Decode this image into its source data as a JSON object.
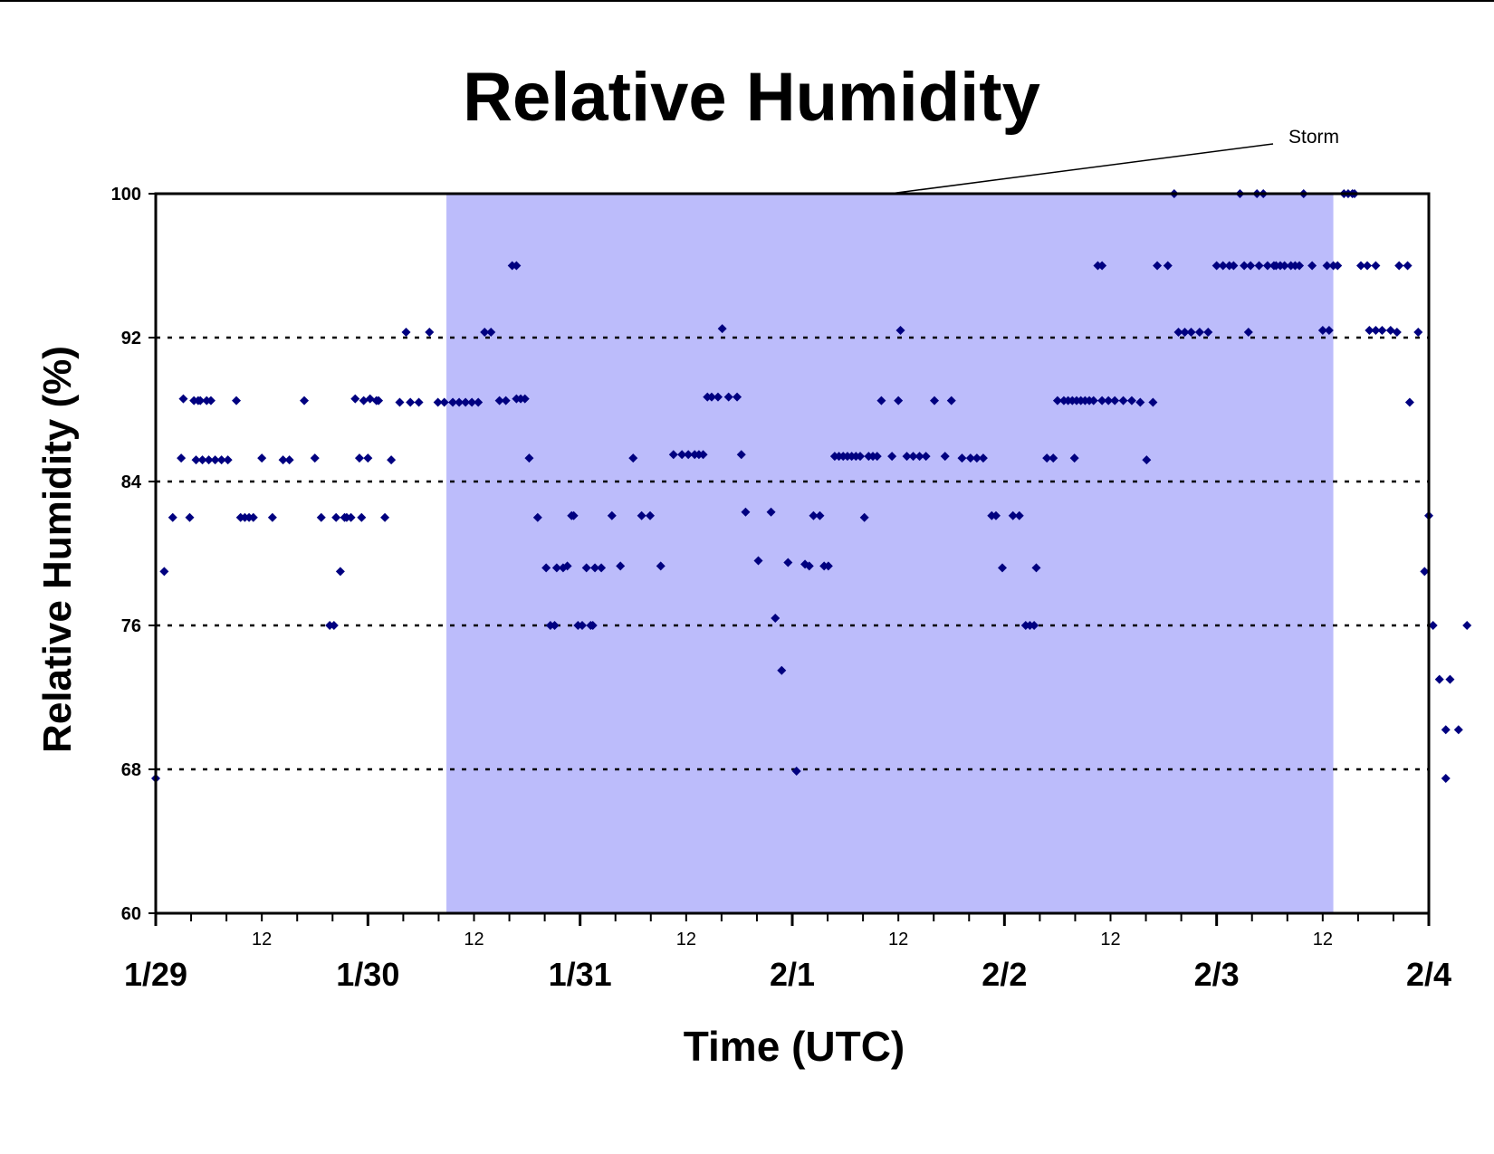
{
  "chart_data": {
    "type": "scatter",
    "title": "Relative Humidity",
    "xlabel": "Time (UTC)",
    "ylabel": "Relative Humidity (%)",
    "x_unit": "days",
    "xlim": [
      "1/29",
      "2/4"
    ],
    "ylim": [
      60,
      100
    ],
    "yticks": [
      60,
      68,
      76,
      84,
      92,
      100
    ],
    "grid": "horizontal dotted at 68, 76, 84, 92",
    "day_labels": [
      "1/29",
      "1/30",
      "1/31",
      "2/1",
      "2/2",
      "2/3",
      "2/4"
    ],
    "hour_label": "12",
    "marker_color": "#000080",
    "storm_fill": "#bcbcfb",
    "storm_annotation": {
      "text": "Storm",
      "start": 1.37,
      "end": 5.55
    },
    "series": [
      {
        "points": [
          [
            0.0,
            67.5
          ],
          [
            0.04,
            79
          ],
          [
            0.08,
            82
          ],
          [
            0.12,
            85.3
          ],
          [
            0.13,
            88.6
          ],
          [
            0.16,
            82
          ],
          [
            0.18,
            88.5
          ],
          [
            0.19,
            85.2
          ],
          [
            0.2,
            88.5
          ],
          [
            0.21,
            88.5
          ],
          [
            0.22,
            85.2
          ],
          [
            0.24,
            88.5
          ],
          [
            0.25,
            85.2
          ],
          [
            0.26,
            88.5
          ],
          [
            0.28,
            85.2
          ],
          [
            0.31,
            85.2
          ],
          [
            0.34,
            85.2
          ],
          [
            0.38,
            88.5
          ],
          [
            0.4,
            82
          ],
          [
            0.42,
            82
          ],
          [
            0.44,
            82
          ],
          [
            0.46,
            82
          ],
          [
            0.5,
            85.3
          ],
          [
            0.55,
            82
          ],
          [
            0.6,
            85.2
          ],
          [
            0.63,
            85.2
          ],
          [
            0.7,
            88.5
          ],
          [
            0.75,
            85.3
          ],
          [
            0.78,
            82
          ],
          [
            0.82,
            76
          ],
          [
            0.84,
            76
          ],
          [
            0.85,
            82
          ],
          [
            0.87,
            79
          ],
          [
            0.89,
            82
          ],
          [
            0.9,
            82
          ],
          [
            0.92,
            82
          ],
          [
            0.94,
            88.6
          ],
          [
            0.96,
            85.3
          ],
          [
            0.97,
            82
          ],
          [
            0.98,
            88.5
          ],
          [
            1.0,
            85.3
          ],
          [
            1.01,
            88.6
          ],
          [
            1.04,
            88.5
          ],
          [
            1.05,
            88.5
          ],
          [
            1.08,
            82
          ],
          [
            1.11,
            85.2
          ],
          [
            1.15,
            88.4
          ],
          [
            1.18,
            92.3
          ],
          [
            1.2,
            88.4
          ],
          [
            1.24,
            88.4
          ],
          [
            1.29,
            92.3
          ],
          [
            1.33,
            88.4
          ],
          [
            1.36,
            88.4
          ],
          [
            1.4,
            88.4
          ],
          [
            1.43,
            88.4
          ],
          [
            1.46,
            88.4
          ],
          [
            1.49,
            88.4
          ],
          [
            1.52,
            88.4
          ],
          [
            1.55,
            92.3
          ],
          [
            1.58,
            92.3
          ],
          [
            1.62,
            88.5
          ],
          [
            1.65,
            88.5
          ],
          [
            1.68,
            96
          ],
          [
            1.7,
            96
          ],
          [
            1.7,
            88.6
          ],
          [
            1.72,
            88.6
          ],
          [
            1.74,
            88.6
          ],
          [
            1.76,
            85.3
          ],
          [
            1.8,
            82
          ],
          [
            1.84,
            79.2
          ],
          [
            1.86,
            76
          ],
          [
            1.88,
            76
          ],
          [
            1.89,
            79.2
          ],
          [
            1.92,
            79.2
          ],
          [
            1.94,
            79.3
          ],
          [
            1.96,
            82.1
          ],
          [
            1.97,
            82.1
          ],
          [
            1.99,
            76
          ],
          [
            2.01,
            76
          ],
          [
            2.03,
            79.2
          ],
          [
            2.05,
            76
          ],
          [
            2.06,
            76
          ],
          [
            2.07,
            79.2
          ],
          [
            2.1,
            79.2
          ],
          [
            2.15,
            82.1
          ],
          [
            2.19,
            79.3
          ],
          [
            2.25,
            85.3
          ],
          [
            2.29,
            82.1
          ],
          [
            2.33,
            82.1
          ],
          [
            2.38,
            79.3
          ],
          [
            2.44,
            85.5
          ],
          [
            2.48,
            85.5
          ],
          [
            2.51,
            85.5
          ],
          [
            2.54,
            85.5
          ],
          [
            2.56,
            85.5
          ],
          [
            2.58,
            85.5
          ],
          [
            2.6,
            88.7
          ],
          [
            2.62,
            88.7
          ],
          [
            2.65,
            88.7
          ],
          [
            2.67,
            92.5
          ],
          [
            2.7,
            88.7
          ],
          [
            2.74,
            88.7
          ],
          [
            2.76,
            85.5
          ],
          [
            2.78,
            82.3
          ],
          [
            2.84,
            79.6
          ],
          [
            2.9,
            82.3
          ],
          [
            2.92,
            76.4
          ],
          [
            2.95,
            73.5
          ],
          [
            2.98,
            79.5
          ],
          [
            3.02,
            67.9
          ],
          [
            3.06,
            79.4
          ],
          [
            3.08,
            79.3
          ],
          [
            3.1,
            82.1
          ],
          [
            3.13,
            82.1
          ],
          [
            3.15,
            79.3
          ],
          [
            3.17,
            79.3
          ],
          [
            3.2,
            85.4
          ],
          [
            3.22,
            85.4
          ],
          [
            3.24,
            85.4
          ],
          [
            3.26,
            85.4
          ],
          [
            3.28,
            85.4
          ],
          [
            3.3,
            85.4
          ],
          [
            3.32,
            85.4
          ],
          [
            3.34,
            82
          ],
          [
            3.36,
            85.4
          ],
          [
            3.38,
            85.4
          ],
          [
            3.4,
            85.4
          ],
          [
            3.42,
            88.5
          ],
          [
            3.47,
            85.4
          ],
          [
            3.5,
            88.5
          ],
          [
            3.51,
            92.4
          ],
          [
            3.54,
            85.4
          ],
          [
            3.57,
            85.4
          ],
          [
            3.6,
            85.4
          ],
          [
            3.63,
            85.4
          ],
          [
            3.67,
            88.5
          ],
          [
            3.72,
            85.4
          ],
          [
            3.75,
            88.5
          ],
          [
            3.8,
            85.3
          ],
          [
            3.84,
            85.3
          ],
          [
            3.87,
            85.3
          ],
          [
            3.9,
            85.3
          ],
          [
            3.94,
            82.1
          ],
          [
            3.96,
            82.1
          ],
          [
            3.99,
            79.2
          ],
          [
            4.04,
            82.1
          ],
          [
            4.07,
            82.1
          ],
          [
            4.1,
            76
          ],
          [
            4.12,
            76
          ],
          [
            4.14,
            76
          ],
          [
            4.15,
            79.2
          ],
          [
            4.2,
            85.3
          ],
          [
            4.23,
            85.3
          ],
          [
            4.25,
            88.5
          ],
          [
            4.28,
            88.5
          ],
          [
            4.3,
            88.5
          ],
          [
            4.32,
            88.5
          ],
          [
            4.33,
            85.3
          ],
          [
            4.34,
            88.5
          ],
          [
            4.36,
            88.5
          ],
          [
            4.38,
            88.5
          ],
          [
            4.4,
            88.5
          ],
          [
            4.42,
            88.5
          ],
          [
            4.44,
            96
          ],
          [
            4.46,
            96
          ],
          [
            4.46,
            88.5
          ],
          [
            4.49,
            88.5
          ],
          [
            4.52,
            88.5
          ],
          [
            4.56,
            88.5
          ],
          [
            4.6,
            88.5
          ],
          [
            4.64,
            88.4
          ],
          [
            4.67,
            85.2
          ],
          [
            4.7,
            88.4
          ],
          [
            4.72,
            96
          ],
          [
            4.77,
            96
          ],
          [
            4.8,
            100
          ],
          [
            4.82,
            92.3
          ],
          [
            4.85,
            92.3
          ],
          [
            4.88,
            92.3
          ],
          [
            4.92,
            92.3
          ],
          [
            4.96,
            92.3
          ],
          [
            5.0,
            96
          ],
          [
            5.03,
            96
          ],
          [
            5.06,
            96
          ],
          [
            5.08,
            96
          ],
          [
            5.11,
            100
          ],
          [
            5.13,
            96
          ],
          [
            5.15,
            92.3
          ],
          [
            5.16,
            96
          ],
          [
            5.19,
            100
          ],
          [
            5.2,
            96
          ],
          [
            5.22,
            100
          ],
          [
            5.24,
            96
          ],
          [
            5.27,
            96
          ],
          [
            5.28,
            96
          ],
          [
            5.3,
            96
          ],
          [
            5.32,
            96
          ],
          [
            5.35,
            96
          ],
          [
            5.37,
            96
          ],
          [
            5.39,
            96
          ],
          [
            5.41,
            100
          ],
          [
            5.45,
            96
          ],
          [
            5.5,
            92.4
          ],
          [
            5.52,
            96
          ],
          [
            5.53,
            92.4
          ],
          [
            5.55,
            96
          ],
          [
            5.57,
            96
          ],
          [
            5.6,
            100
          ],
          [
            5.62,
            100
          ],
          [
            5.64,
            100
          ],
          [
            5.65,
            100
          ],
          [
            5.68,
            96
          ],
          [
            5.71,
            96
          ],
          [
            5.72,
            92.4
          ],
          [
            5.75,
            96
          ],
          [
            5.75,
            92.4
          ],
          [
            5.78,
            92.4
          ],
          [
            5.82,
            92.4
          ],
          [
            5.85,
            92.3
          ],
          [
            5.86,
            96
          ],
          [
            5.9,
            96
          ],
          [
            5.91,
            88.4
          ],
          [
            5.95,
            92.3
          ],
          [
            6.0,
            82.1
          ],
          [
            5.98,
            79
          ],
          [
            6.02,
            76
          ],
          [
            6.05,
            73
          ],
          [
            6.08,
            70.2
          ],
          [
            6.1,
            73
          ],
          [
            6.14,
            70.2
          ],
          [
            6.18,
            76
          ],
          [
            6.08,
            67.5
          ]
        ]
      }
    ]
  }
}
